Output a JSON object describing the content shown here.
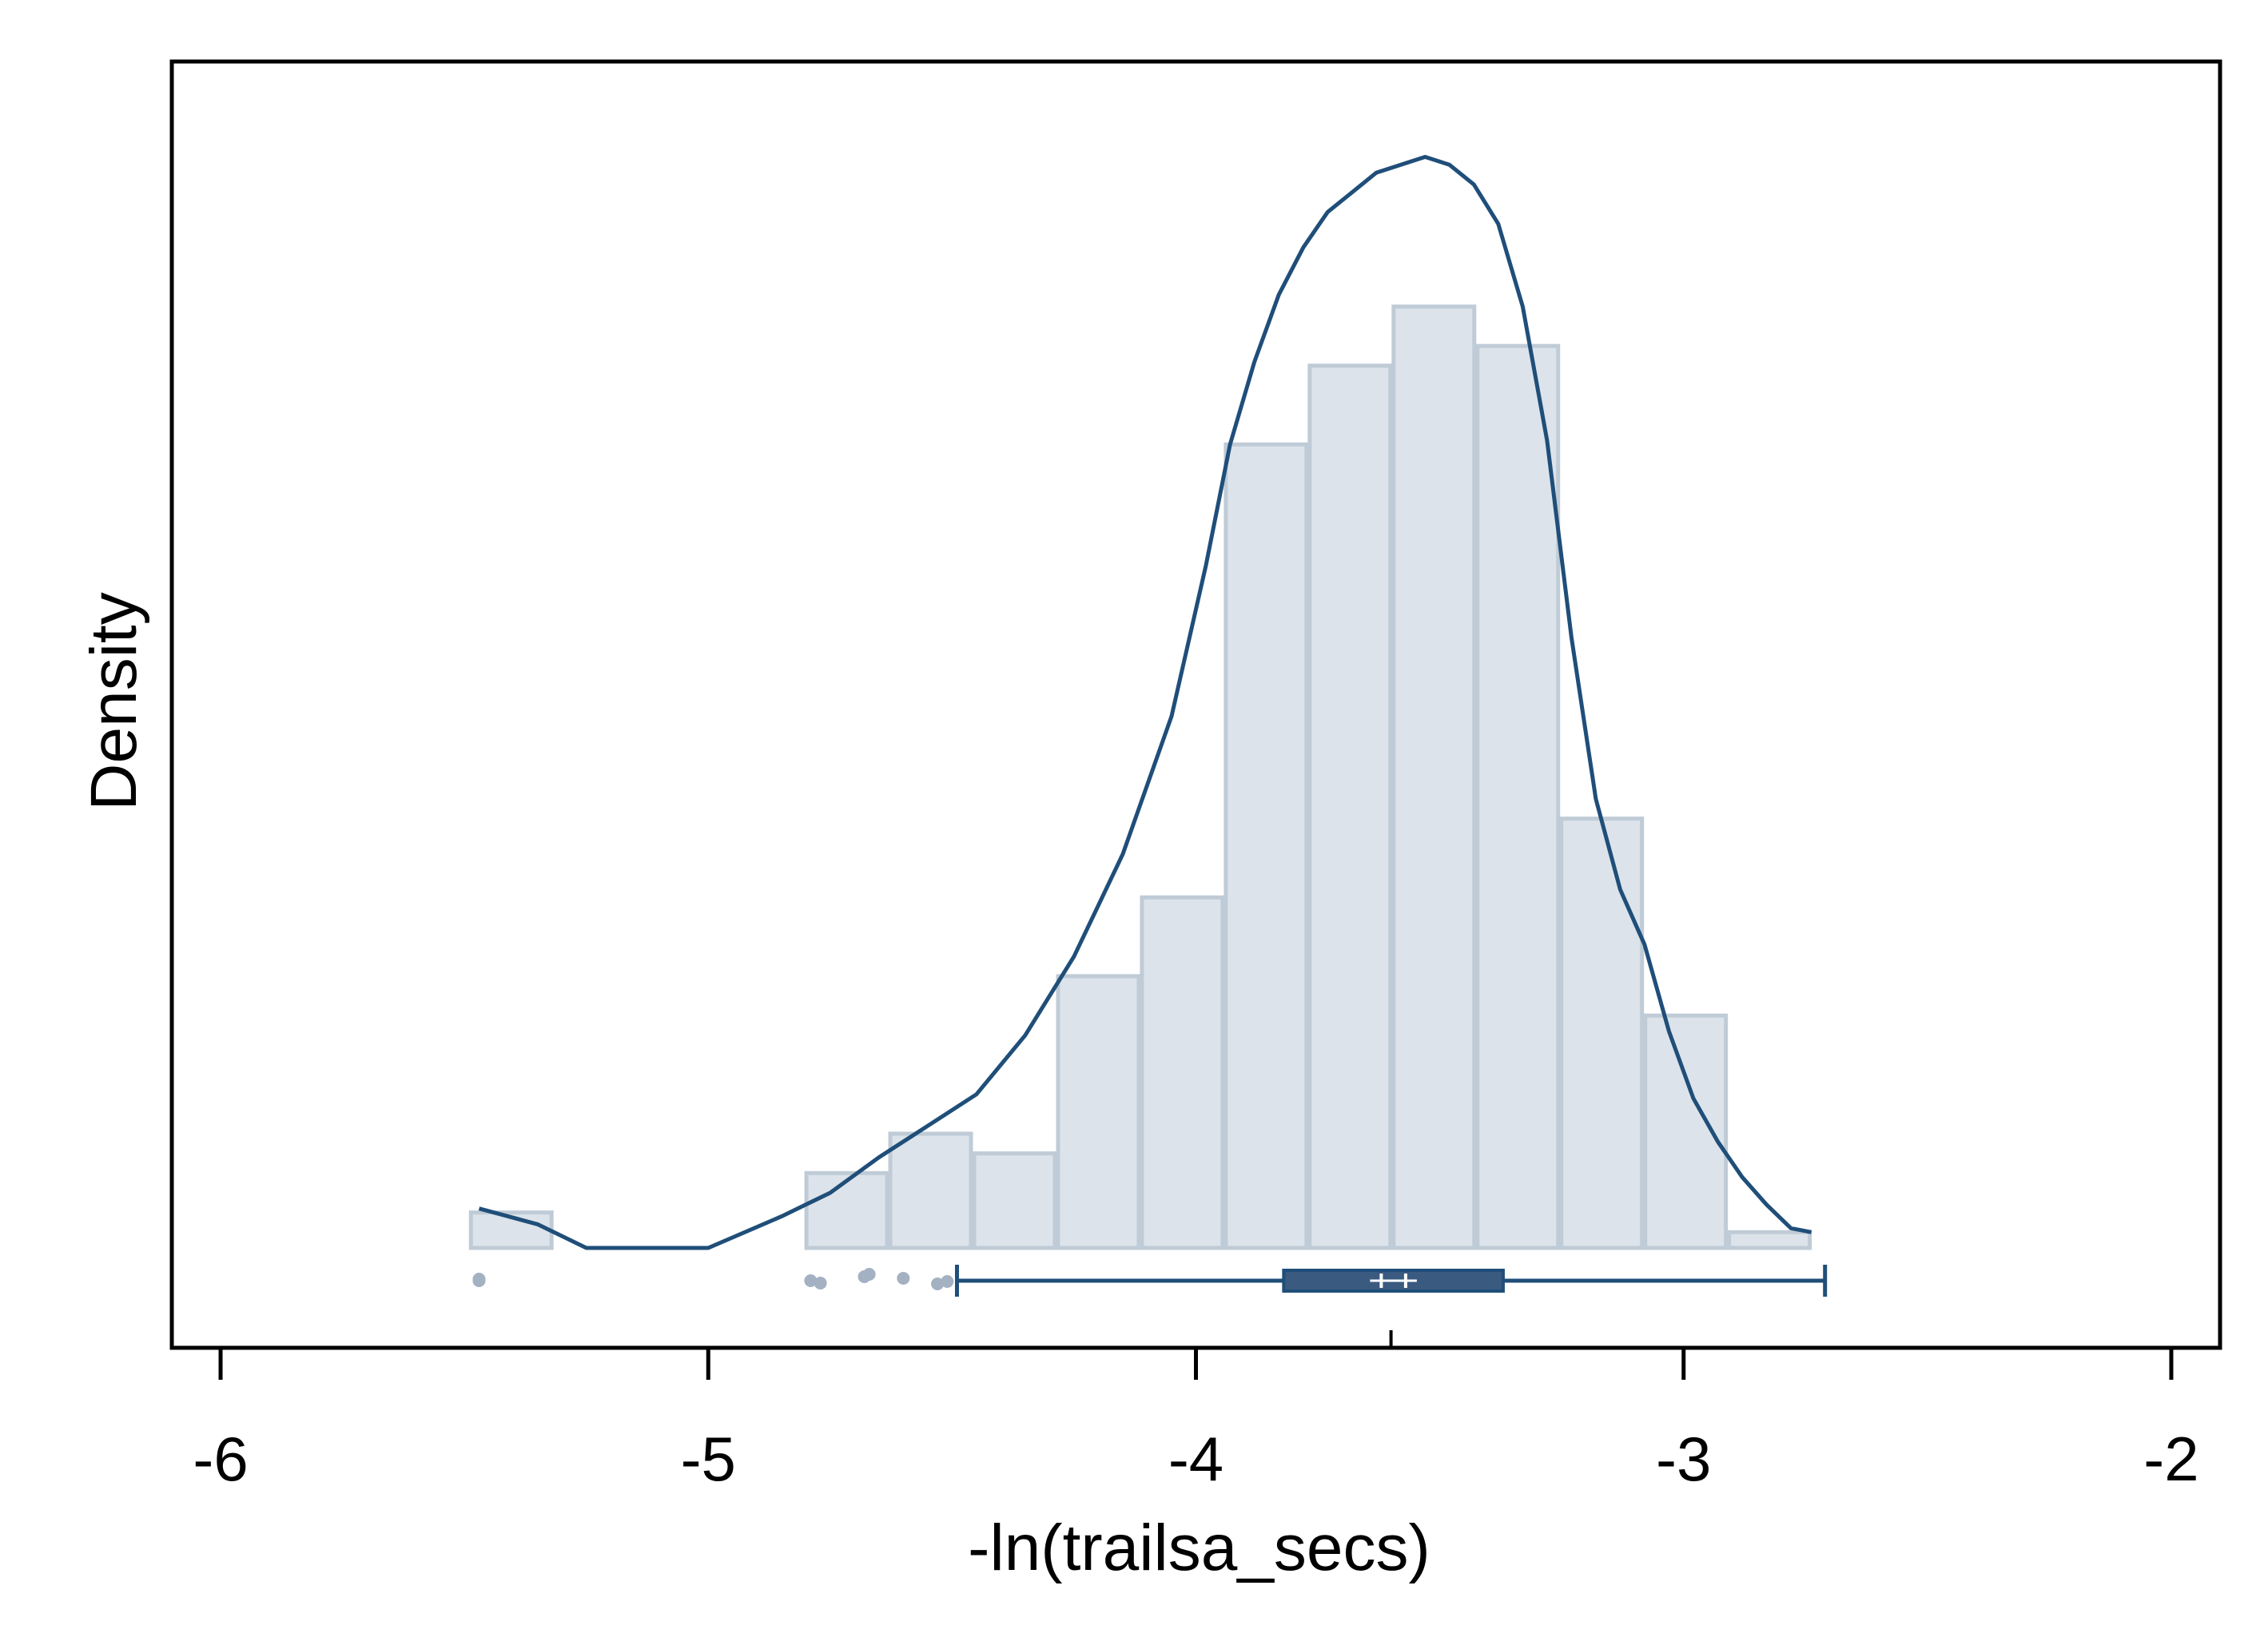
{
  "chart_data": {
    "type": "histogram",
    "title": "",
    "xlabel": "-ln(trailsa_secs)",
    "ylabel": "Density",
    "xlim": [
      -6.1,
      -1.9
    ],
    "x_ticks": [
      -6,
      -5,
      -4,
      -3,
      -2
    ],
    "x_tick_labels": [
      "-6",
      "-5",
      "-4",
      "-3",
      "-2"
    ],
    "y_ticks_shown": false,
    "grid": false,
    "legend": "none",
    "histogram": {
      "bin_edges": [
        -5.49,
        -5.318,
        -5.146,
        -4.974,
        -4.802,
        -4.63,
        -4.458,
        -4.286,
        -4.114,
        -3.942,
        -3.77,
        -3.598,
        -3.426,
        -3.254,
        -3.082,
        -2.91,
        -2.738
      ],
      "heights": [
        0.09,
        0,
        0,
        0,
        0.19,
        0.29,
        0.24,
        0.69,
        0.89,
        2.04,
        2.24,
        2.39,
        2.29,
        1.09,
        0.59,
        0.04
      ]
    },
    "kde": {
      "x": [
        -5.47,
        -5.35,
        -5.25,
        -5.0,
        -4.85,
        -4.8,
        -4.75,
        -4.65,
        -4.55,
        -4.45,
        -4.35,
        -4.25,
        -4.15,
        -4.05,
        -3.98,
        -3.93,
        -3.88,
        -3.83,
        -3.78,
        -3.73,
        -3.68,
        -3.63,
        -3.58,
        -3.53,
        -3.48,
        -3.43,
        -3.38,
        -3.33,
        -3.28,
        -3.23,
        -3.18,
        -3.13,
        -3.08,
        -3.03,
        -2.98,
        -2.93,
        -2.88,
        -2.83,
        -2.78,
        -2.738
      ],
      "y": [
        0.1,
        0.06,
        0.0,
        0.0,
        0.08,
        0.11,
        0.14,
        0.23,
        0.31,
        0.39,
        0.54,
        0.74,
        1.0,
        1.35,
        1.73,
        2.04,
        2.25,
        2.42,
        2.54,
        2.63,
        2.68,
        2.73,
        2.75,
        2.77,
        2.75,
        2.7,
        2.6,
        2.39,
        2.05,
        1.55,
        1.14,
        0.91,
        0.77,
        0.55,
        0.38,
        0.27,
        0.18,
        0.11,
        0.05,
        0.04
      ]
    },
    "boxplot": {
      "whisker_low": -4.49,
      "q1": -3.82,
      "median": -3.62,
      "mean": -3.57,
      "q3": -3.37,
      "whisker_high": -2.71,
      "outliers": [
        -5.47,
        -5.47,
        -4.79,
        -4.77,
        -4.68,
        -4.67,
        -4.6,
        -4.53,
        -4.51
      ],
      "marker_tick": -3.6
    },
    "colors": {
      "bar_fill": "#dce3ea",
      "bar_edge": "#bfcbd6",
      "line": "#1f4e79",
      "box_fill": "#3a5a80",
      "outlier": "#a3b1c2",
      "axis": "#000000"
    }
  }
}
